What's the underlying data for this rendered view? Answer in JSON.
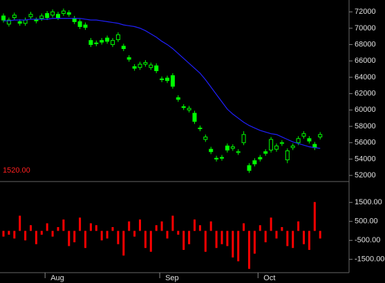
{
  "chart_data": [
    {
      "type": "candlestick",
      "categories": [
        null,
        null,
        null,
        null,
        null,
        null,
        null,
        null,
        "Aug",
        null,
        null,
        null,
        null,
        null,
        null,
        null,
        null,
        null,
        null,
        null,
        null,
        null,
        null,
        null,
        null,
        null,
        null,
        null,
        null,
        "Sep",
        null,
        null,
        null,
        null,
        null,
        null,
        null,
        null,
        null,
        null,
        null,
        null,
        null,
        null,
        null,
        null,
        null,
        "Oct",
        null,
        null,
        null,
        null,
        null,
        null,
        null,
        null,
        null,
        null,
        null
      ],
      "open": [
        71500,
        70500,
        71300,
        70800,
        70600,
        71400,
        71000,
        71200,
        71800,
        71600,
        71700,
        71800,
        71900,
        71200,
        70800,
        70400,
        68500,
        68200,
        68500,
        68800,
        68000,
        68600,
        67800,
        66400,
        65300,
        65200,
        65600,
        65200,
        65400,
        63800,
        63900,
        64200,
        61500,
        60400,
        60000,
        59600,
        57800,
        56400,
        55200,
        54100,
        54200,
        55600,
        55300,
        54800,
        56000,
        53200,
        53800,
        54200,
        54900,
        55100,
        55200,
        55900,
        53900,
        55400,
        56000,
        56800,
        56500,
        55800,
        56700
      ],
      "high": [
        71800,
        71300,
        71900,
        71100,
        71300,
        72000,
        71300,
        71800,
        72100,
        72300,
        72000,
        72400,
        72200,
        71500,
        71100,
        70700,
        68800,
        68500,
        68800,
        69100,
        68800,
        69500,
        68100,
        66700,
        65600,
        65900,
        66100,
        65800,
        65700,
        64100,
        64200,
        64500,
        61800,
        60700,
        60500,
        59900,
        58100,
        57000,
        55500,
        54400,
        54500,
        55900,
        55800,
        55200,
        57400,
        53500,
        54100,
        54500,
        55200,
        56700,
        55900,
        56300,
        55300,
        55900,
        56800,
        57400,
        56800,
        56100,
        57300
      ],
      "low": [
        70700,
        70200,
        71000,
        70300,
        70300,
        71100,
        70600,
        70900,
        71000,
        71300,
        71000,
        71500,
        71400,
        70500,
        69900,
        69800,
        67700,
        67800,
        68000,
        68100,
        67700,
        68300,
        67200,
        65900,
        64800,
        64900,
        65300,
        64900,
        64500,
        63400,
        63300,
        62600,
        61000,
        60000,
        59700,
        58300,
        57400,
        56100,
        54600,
        53700,
        53800,
        54800,
        55000,
        54500,
        55700,
        52300,
        53100,
        53700,
        54400,
        54800,
        54900,
        55600,
        53500,
        55100,
        55700,
        56500,
        55900,
        55100,
        56400
      ],
      "close": [
        71000,
        71000,
        71600,
        70600,
        71000,
        71700,
        70900,
        71500,
        71300,
        72000,
        71300,
        72100,
        71700,
        70800,
        70200,
        70100,
        68000,
        68100,
        68300,
        68400,
        68500,
        69200,
        67500,
        66200,
        65100,
        65600,
        65800,
        65500,
        64800,
        63700,
        63600,
        62900,
        61300,
        60300,
        60200,
        58600,
        57700,
        56700,
        54900,
        54000,
        54100,
        55100,
        55500,
        54900,
        57000,
        52600,
        53400,
        54000,
        54700,
        56400,
        55600,
        56000,
        55000,
        55600,
        56500,
        57100,
        56200,
        55400,
        57000
      ],
      "color": "#00ff00",
      "series": [
        {
          "color": "#2020ff",
          "values": [
            70900,
            70900,
            71000,
            71000,
            71000,
            71100,
            71100,
            71100,
            71100,
            71200,
            71200,
            71200,
            71200,
            71200,
            71200,
            71100,
            71000,
            71000,
            70900,
            70800,
            70700,
            70600,
            70400,
            70300,
            70200,
            70000,
            69700,
            69300,
            68900,
            68400,
            68000,
            67500,
            66900,
            66300,
            65700,
            65100,
            64500,
            63700,
            62800,
            61900,
            61000,
            60100,
            59500,
            59000,
            58500,
            58100,
            57800,
            57500,
            57300,
            57100,
            57000,
            56700,
            56400,
            56100,
            55900,
            55700,
            55500,
            55400,
            55300
          ]
        }
      ],
      "ylim": [
        51250,
        73450
      ],
      "yticks": [
        52000,
        54000,
        56000,
        58000,
        60000,
        62000,
        64000,
        66000,
        68000,
        70000,
        72000
      ]
    },
    {
      "type": "bar",
      "indicator_readout": "1520.00",
      "color": "#ff0000",
      "values": [
        -300,
        -200,
        -400,
        800,
        -500,
        300,
        -700,
        -200,
        400,
        -300,
        200,
        600,
        -800,
        -600,
        700,
        -900,
        400,
        300,
        -500,
        -400,
        200,
        -700,
        -1300,
        500,
        -300,
        600,
        -900,
        -1100,
        300,
        500,
        -400,
        800,
        -200,
        -1000,
        -700,
        600,
        300,
        -1100,
        500,
        -900,
        -700,
        -800,
        -1400,
        -1600,
        400,
        -2000,
        -1200,
        300,
        -600,
        700,
        -400,
        200,
        -800,
        -900,
        500,
        -700,
        -1000,
        1520,
        -400
      ],
      "ylim": [
        -2200,
        2600
      ],
      "yticks": [
        {
          "value": -1500,
          "label": "-1500.00"
        },
        {
          "value": -500,
          "label": "-500.00"
        },
        {
          "value": 500,
          "label": "500.00"
        },
        {
          "value": 1500,
          "label": "1500.00"
        }
      ]
    }
  ]
}
